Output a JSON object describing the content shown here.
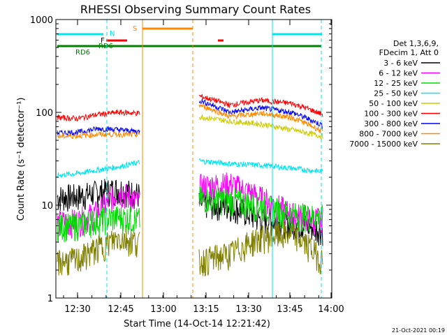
{
  "chart_data": {
    "type": "line",
    "title": "RHESSI Observing Summary Count Rates",
    "xlabel": "Start Time (14-Oct-14 12:21:42)",
    "ylabel": "Count Rate (s⁻¹ detector⁻¹)",
    "y_scale": "log",
    "ylim": [
      1,
      1000
    ],
    "xlim": [
      "12:21:42",
      "14:00:00"
    ],
    "x_tick_labels": [
      "12:30",
      "12:45",
      "13:00",
      "13:15",
      "13:30",
      "13:45",
      "14:00"
    ],
    "y_tick_labels": [
      "1",
      "10",
      "100",
      "1000"
    ],
    "legend_header": [
      "Det 1,3,6,9,",
      "FDecim 1, Att 0"
    ],
    "legend_position": "right",
    "series": [
      {
        "name": "3 - 6 keV",
        "color": "#000000",
        "seg1": [
          12.3,
          12.6,
          13.9,
          15.1,
          13.0
        ],
        "seg2": [
          10.5,
          10.0,
          7.0,
          6.5,
          5.5
        ]
      },
      {
        "name": "6 - 12 keV",
        "color": "#ff00ff",
        "seg1": [
          6.5,
          6.8,
          8.5,
          14.0,
          10.5
        ],
        "seg2": [
          16.0,
          17.0,
          12.0,
          8.0,
          7.0
        ]
      },
      {
        "name": "12 - 25 keV",
        "color": "#00dd00",
        "seg1": [
          6.0,
          6.2,
          7.0,
          7.5,
          7.0
        ],
        "seg2": [
          12.0,
          11.5,
          10.0,
          8.0,
          7.5
        ]
      },
      {
        "name": "25 - 50 keV",
        "color": "#00e5ee",
        "seg1": [
          21.0,
          22.0,
          24.0,
          26.0,
          29.0
        ],
        "seg2": [
          30.0,
          28.0,
          27.0,
          25.0,
          23.0
        ]
      },
      {
        "name": "50 - 100 keV",
        "color": "#cccc00",
        "seg1": [
          0,
          0,
          0,
          0,
          0
        ],
        "seg2": [
          90.0,
          80.0,
          75.0,
          65.0,
          55.0
        ]
      },
      {
        "name": "100 - 300 keV",
        "color": "#ff0000",
        "seg1": [
          88.0,
          86.0,
          95.0,
          100.0,
          98.0
        ],
        "seg2": [
          150.0,
          120.0,
          135.0,
          125.0,
          95.0
        ]
      },
      {
        "name": "300 - 800 keV",
        "color": "#0000ff",
        "seg1": [
          60.0,
          61.0,
          67.0,
          65.0,
          62.0
        ],
        "seg2": [
          135.0,
          100.0,
          112.0,
          100.0,
          72.0
        ]
      },
      {
        "name": "800 - 7000 keV",
        "color": "#ff8800",
        "seg1": [
          55.0,
          56.0,
          58.0,
          58.0,
          57.0
        ],
        "seg2": [
          120.0,
          90.0,
          98.0,
          88.0,
          62.0
        ]
      },
      {
        "name": "7000 - 15000 keV",
        "color": "#808000",
        "seg1": [
          2.5,
          2.6,
          3.5,
          4.5,
          4.0
        ],
        "seg2": [
          2.5,
          3.0,
          4.5,
          5.0,
          2.5
        ]
      }
    ],
    "flag_labels": [
      "N",
      "F",
      "S",
      "RD6",
      "RD6"
    ]
  },
  "footer": {
    "timestamp": "21-Oct-2021 00:19"
  }
}
